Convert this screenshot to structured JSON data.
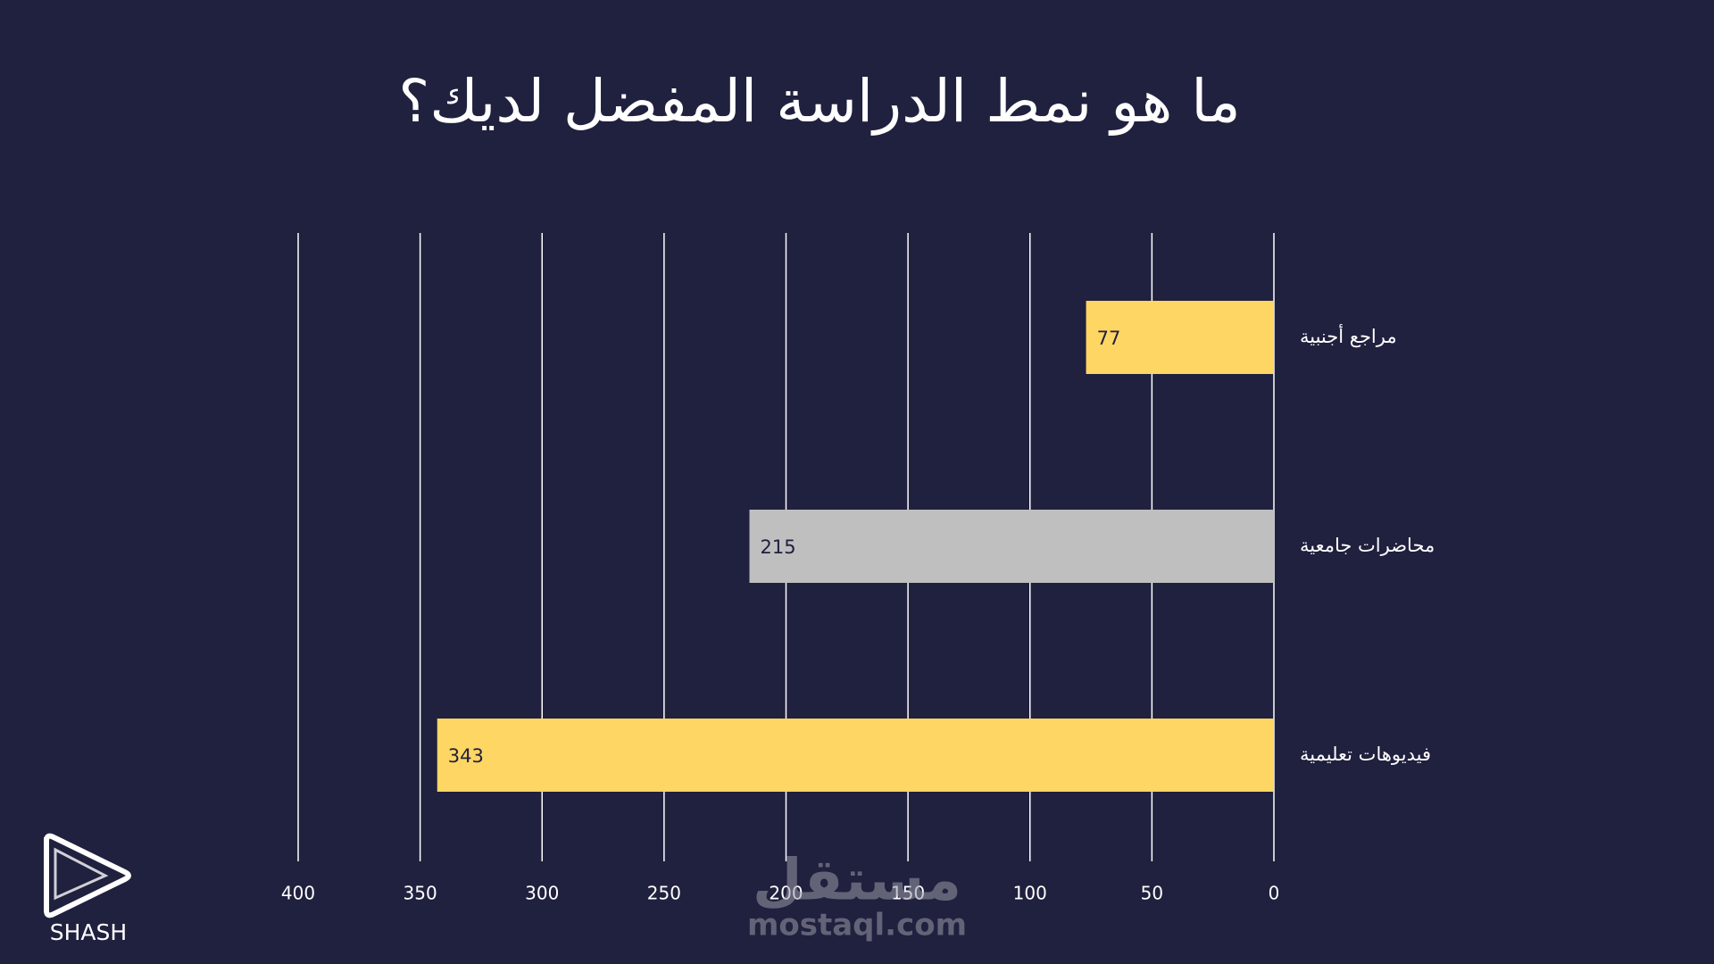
{
  "chart_data": {
    "type": "bar",
    "orientation": "horizontal",
    "title": "ما هو نمط الدراسة المفضل لديك؟",
    "categories": [
      "مراجع أجنبية",
      "محاضرات جامعية",
      "فيديوهات تعليمية"
    ],
    "values": [
      77,
      215,
      343
    ],
    "colors": [
      "#fdd663",
      "#bfbfbf",
      "#fdd663"
    ],
    "xlim": [
      0,
      400
    ],
    "x_inverted": true,
    "xticks": [
      0,
      50,
      100,
      150,
      200,
      250,
      300,
      350,
      400
    ],
    "grid": true
  },
  "logo": {
    "text": "SHASH"
  },
  "watermark": {
    "arabic": "مستقل",
    "latin": "mostaql.com"
  }
}
